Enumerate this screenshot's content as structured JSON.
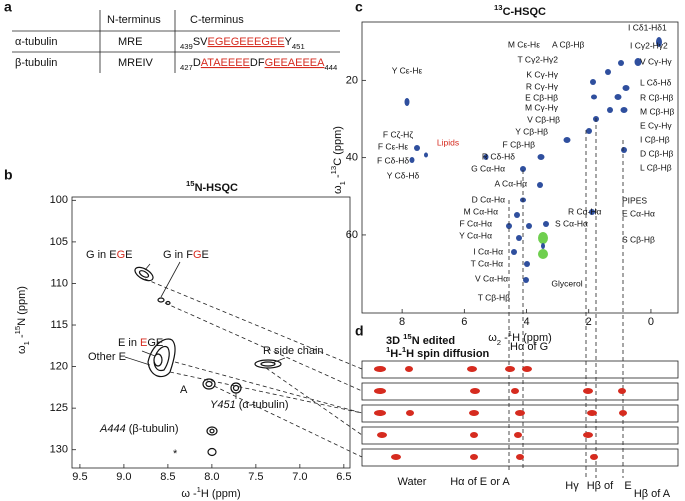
{
  "panel_a": {
    "letter": "a",
    "headers": [
      "N-terminus",
      "C-terminus"
    ],
    "rows": [
      {
        "name": "α-tubulin",
        "n_term": "MRE",
        "c_term": [
          {
            "text": "439",
            "sub": true
          },
          {
            "text": "SV"
          },
          {
            "text": "EGEGEEEGEE",
            "red": true
          },
          {
            "text": "Y"
          },
          {
            "text": "451",
            "sub": true
          }
        ]
      },
      {
        "name": "β-tubulin",
        "n_term": "MREIV",
        "c_term": [
          {
            "text": "427",
            "sub": true
          },
          {
            "text": "D"
          },
          {
            "text": "ATAEEEE",
            "red": true
          },
          {
            "text": "DF"
          },
          {
            "text": "GEEAEEEA",
            "red": true
          },
          {
            "text": "444",
            "sub": true
          }
        ]
      }
    ]
  },
  "panel_b": {
    "letter": "b",
    "title": [
      {
        "text": "15",
        "sup": true
      },
      {
        "text": "N-HSQC"
      }
    ],
    "x_label": [
      {
        "text": "ω -"
      },
      {
        "text": "1",
        "sup": true
      },
      {
        "text": "H (ppm)"
      }
    ],
    "y_label": [
      {
        "text": "ω"
      },
      {
        "text": "1",
        "sub": true
      },
      {
        "text": " -"
      },
      {
        "text": "15",
        "sup": true
      },
      {
        "text": "N (ppm)"
      }
    ],
    "xlim": [
      9.59,
      6.43
    ],
    "ylim": [
      99.6,
      132.2
    ],
    "xticks": [
      9.5,
      {
        "value": 9,
        "label": "9.0"
      },
      8.5,
      {
        "value": 8,
        "label": "8.0"
      },
      7.5,
      {
        "value": 7,
        "label": "7.0"
      },
      6.5
    ],
    "yticks": [
      100,
      105,
      110,
      115,
      120,
      125,
      130
    ],
    "peak_labels": [
      [
        {
          "text": "G in E"
        },
        {
          "text": "G",
          "red": true
        },
        {
          "text": "E"
        }
      ],
      [
        {
          "text": "G in F"
        },
        {
          "text": "G",
          "red": true
        },
        {
          "text": "E"
        }
      ],
      [
        {
          "text": "E in "
        },
        {
          "text": "E",
          "red": true
        },
        {
          "text": "GE"
        }
      ],
      [
        {
          "text": "Other E"
        }
      ],
      [
        {
          "text": "R side chain"
        }
      ],
      [
        {
          "text": "A"
        }
      ],
      [
        {
          "text": "Y451",
          "italic": true
        },
        {
          "text": " (α-tubulin)"
        }
      ],
      [
        {
          "text": "A444",
          "italic": true
        },
        {
          "text": " (β-tubulin)"
        }
      ],
      [
        {
          "text": "*"
        }
      ]
    ]
  },
  "panel_c": {
    "letter": "c",
    "title": [
      {
        "text": "13",
        "sup": true
      },
      {
        "text": "C-HSQC"
      }
    ],
    "x_label": [
      {
        "text": "ω"
      },
      {
        "text": "2",
        "sub": true
      },
      {
        "text": " -"
      },
      {
        "text": "1",
        "sup": true
      },
      {
        "text": "H (ppm)"
      }
    ],
    "y_label": [
      {
        "text": "ω"
      },
      {
        "text": "1",
        "sub": true
      },
      {
        "text": " -"
      },
      {
        "text": "13",
        "sup": true
      },
      {
        "text": "C (ppm)"
      }
    ],
    "xlim": [
      9.29,
      -0.87
    ],
    "ylim": [
      4.9,
      80.2
    ],
    "xticks": [
      8,
      6,
      4,
      2,
      0
    ],
    "yticks": [
      20,
      40,
      60
    ],
    "peak_labels": [
      "I Cδ1-Hδ1",
      "M Cε-Hε",
      "A Cβ-Hβ",
      "I Cγ2-Hγ2",
      "T Cγ2-Hγ2",
      "V Cγ-Hγ",
      "K Cγ-Hγ",
      "L Cδ-Hδ",
      "R Cγ-Hγ",
      "E Cβ-Hβ",
      "R Cβ-Hβ",
      "M Cγ-Hγ",
      "M Cβ-Hβ",
      "V Cβ-Hβ",
      "E Cγ-Hγ",
      "Y Cβ-Hβ",
      "I Cβ-Hβ",
      "F Cβ-Hβ",
      "D Cβ-Hβ",
      "R Cδ-Hδ",
      "L Cβ-Hβ",
      "G Cα-Hα",
      "A Cα-Hα",
      "D Cα-Hα",
      "M Cα-Hα",
      "F Cα-Hα",
      "Y Cα-Hα",
      "I Cα-Hα",
      "T Cα-Hα",
      "V Cα-Hα",
      "T Cβ-Hβ",
      "Y Cε-Hε",
      "F Cζ-Hζ",
      "F Cε-Hε",
      "F Cδ-Hδ",
      "Y Cδ-Hδ",
      "R Cα-Hα",
      "S Cα-Hα",
      "PIPES",
      "E Cα-Hα",
      "S Cβ-Hβ",
      "Glycerol"
    ],
    "lipids_label": "Lipids"
  },
  "panel_d": {
    "letter": "d",
    "title_1": [
      {
        "text": "3D "
      },
      {
        "text": "15",
        "sup": true
      },
      {
        "text": "N edited"
      }
    ],
    "title_2": [
      {
        "text": "1",
        "sup": true
      },
      {
        "text": "H-"
      },
      {
        "text": "1",
        "sup": true
      },
      {
        "text": "H spin diffusion"
      }
    ],
    "top_label": "Hα of G",
    "bottom_labels": [
      "Water",
      "Hα of E or A",
      "Hγ",
      "Hβ of",
      "E",
      "Hβ of A"
    ]
  }
}
